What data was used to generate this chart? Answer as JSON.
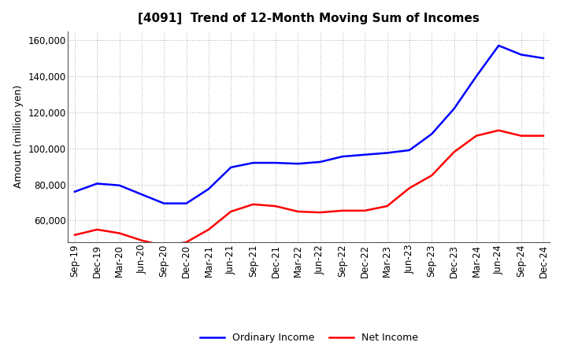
{
  "title": "[4091]  Trend of 12-Month Moving Sum of Incomes",
  "ylabel": "Amount (million yen)",
  "ylim": [
    48000,
    165000
  ],
  "yticks": [
    60000,
    80000,
    100000,
    120000,
    140000,
    160000
  ],
  "background_color": "#ffffff",
  "plot_bg_color": "#ffffff",
  "grid_color": "#aaaaaa",
  "x_labels": [
    "Sep-19",
    "Dec-19",
    "Mar-20",
    "Jun-20",
    "Sep-20",
    "Dec-20",
    "Mar-21",
    "Jun-21",
    "Sep-21",
    "Dec-21",
    "Mar-22",
    "Jun-22",
    "Sep-22",
    "Dec-22",
    "Mar-23",
    "Jun-23",
    "Sep-23",
    "Dec-23",
    "Mar-24",
    "Jun-24",
    "Sep-24",
    "Dec-24"
  ],
  "ordinary_income": [
    76000,
    80500,
    79500,
    74500,
    69500,
    69500,
    77500,
    89500,
    92000,
    92000,
    91500,
    92500,
    95500,
    96500,
    97500,
    99000,
    108000,
    122000,
    140000,
    157000,
    152000,
    150000
  ],
  "net_income": [
    52000,
    55000,
    53000,
    49000,
    46000,
    48000,
    55000,
    65000,
    69000,
    68000,
    65000,
    64500,
    65500,
    65500,
    68000,
    78000,
    85000,
    98000,
    107000,
    110000,
    107000,
    107000
  ],
  "ordinary_color": "#0000ff",
  "net_color": "#ff0000",
  "line_width": 1.8,
  "legend_ordinary": "Ordinary Income",
  "legend_net": "Net Income",
  "title_fontsize": 11,
  "label_fontsize": 9,
  "tick_fontsize": 8.5
}
